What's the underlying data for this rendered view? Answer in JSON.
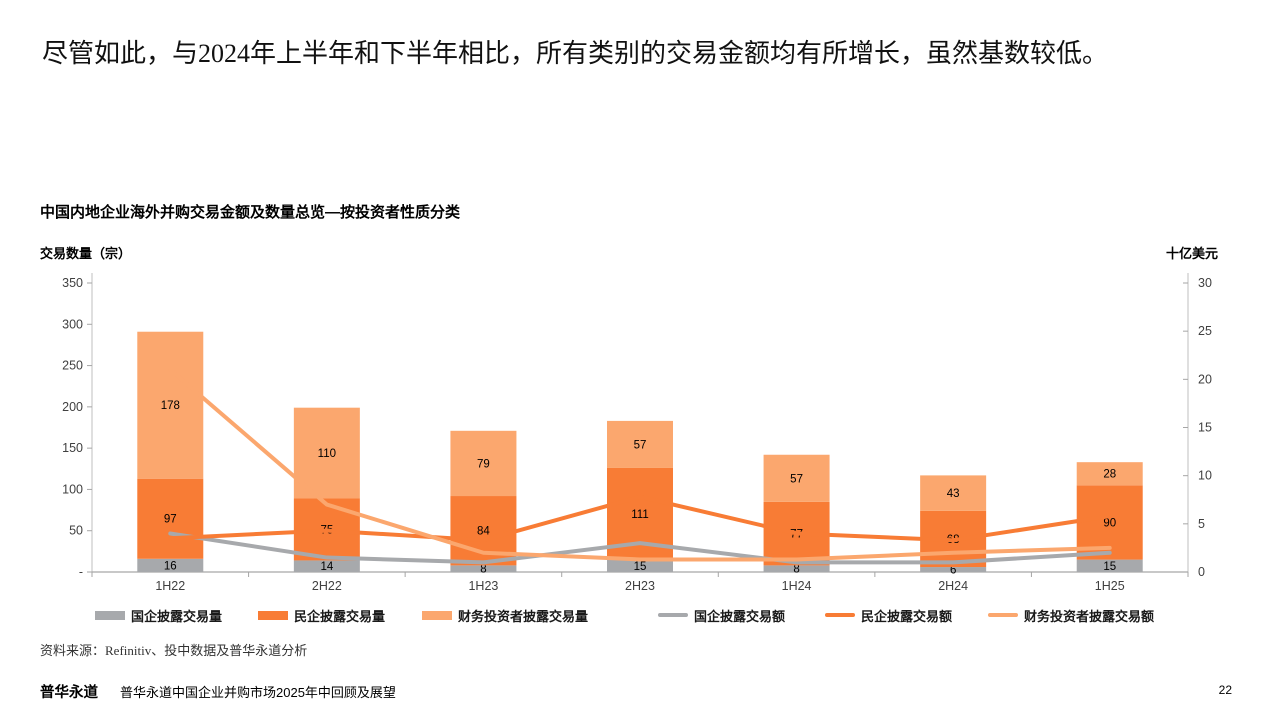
{
  "page": {
    "heading": "尽管如此，与2024年上半年和下半年相比，所有类别的交易金额均有所增长，虽然基数较低。",
    "source_line": "资料来源：Refinitiv、投中数据及普华永道分析",
    "footer_brand": "普华永道",
    "footer_title": "普华永道中国企业并购市场2025年中回顾及展望",
    "page_number": "22"
  },
  "chart_data": {
    "type": "combo-bar-line",
    "title": "中国内地企业海外并购交易金额及数量总览—按投资者性质分类",
    "categories": [
      "1H22",
      "2H22",
      "1H23",
      "2H23",
      "1H24",
      "2H24",
      "1H25"
    ],
    "left_axis": {
      "label": "交易数量（宗）",
      "min": 0,
      "max": 350,
      "ticks": [
        "350",
        "300",
        "250",
        "200",
        "150",
        "100",
        "50",
        "-"
      ]
    },
    "right_axis": {
      "label": "十亿美元",
      "min": 0,
      "max": 30,
      "ticks": [
        "30",
        "25",
        "20",
        "15",
        "10",
        "5",
        "0"
      ]
    },
    "bar_series": [
      {
        "name": "国企披露交易量",
        "color": "#A7A9AC",
        "values": [
          16,
          14,
          8,
          15,
          8,
          6,
          15
        ]
      },
      {
        "name": "民企披露交易量",
        "color": "#F87C35",
        "values": [
          97,
          75,
          84,
          111,
          77,
          68,
          90
        ]
      },
      {
        "name": "财务投资者披露交易量",
        "color": "#FBA76E",
        "values": [
          178,
          110,
          79,
          57,
          57,
          43,
          28
        ]
      }
    ],
    "line_series": [
      {
        "name": "国企披露交易额",
        "color": "#A7A9AC",
        "values": [
          4.0,
          1.5,
          1.0,
          3.0,
          1.0,
          1.0,
          2.0
        ]
      },
      {
        "name": "民企披露交易额",
        "color": "#F87C35",
        "values": [
          3.5,
          4.3,
          3.3,
          7.8,
          4.0,
          3.3,
          5.8
        ]
      },
      {
        "name": "财务投资者披露交易额",
        "color": "#FBA76E",
        "values": [
          21.0,
          7.0,
          2.0,
          1.3,
          1.3,
          2.0,
          2.5
        ]
      }
    ],
    "legend": [
      "国企披露交易量",
      "民企披露交易量",
      "财务投资者披露交易量",
      "国企披露交易额",
      "民企披露交易额",
      "财务投资者披露交易额"
    ],
    "grid": false,
    "legend_position": "bottom"
  }
}
